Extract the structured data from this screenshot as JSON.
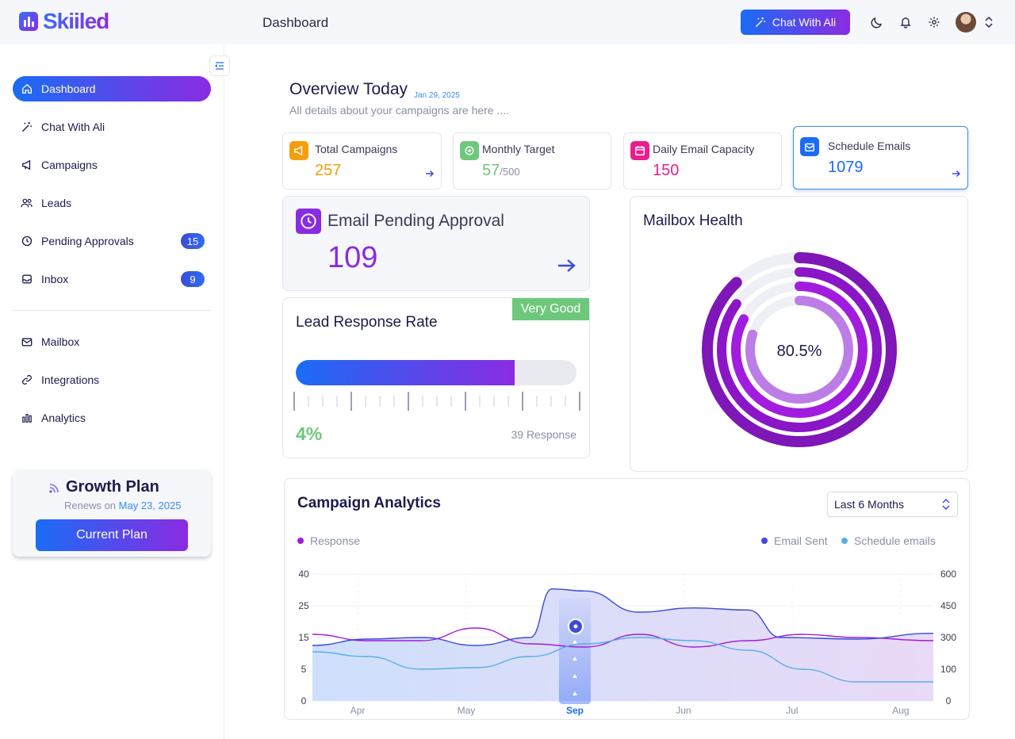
{
  "app": {
    "name": "Skiiled",
    "page_title": "Dashboard",
    "chat_button": "Chat With Ali"
  },
  "sidebar": {
    "items": [
      {
        "label": "Dashboard",
        "icon": "home-icon",
        "active": true
      },
      {
        "label": "Chat With Ali",
        "icon": "magic-wand-icon"
      },
      {
        "label": "Campaigns",
        "icon": "megaphone-icon"
      },
      {
        "label": "Leads",
        "icon": "users-icon"
      },
      {
        "label": "Pending Approvals",
        "icon": "clock-icon",
        "badge": "15"
      },
      {
        "label": "Inbox",
        "icon": "inbox-icon",
        "badge": "9"
      },
      {
        "label": "Mailbox",
        "icon": "mailbox-icon"
      },
      {
        "label": "Integrations",
        "icon": "link-icon"
      },
      {
        "label": "Analytics",
        "icon": "bar-chart-icon"
      }
    ],
    "plan": {
      "title": "Growth Plan",
      "renew_prefix": "Renews on",
      "renew_date": "May 23, 2025",
      "button": "Current Plan"
    }
  },
  "overview": {
    "title": "Overview Today",
    "date": "Jan 29, 2025",
    "subtitle": "All details about your campaigns are here ...."
  },
  "stats": [
    {
      "label": "Total Campaigns",
      "value": "257",
      "color": "#f59e0b",
      "icon": "megaphone-icon"
    },
    {
      "label": "Monthly Target",
      "value": "57",
      "suffix": "/500",
      "color": "#6ec87b",
      "icon": "target-icon"
    },
    {
      "label": "Daily Email Capacity",
      "value": "150",
      "color": "#e91e8c",
      "icon": "calendar-icon"
    },
    {
      "label": "Schedule Emails",
      "value": "1079",
      "color": "#1a6cf5",
      "icon": "mail-open-icon"
    }
  ],
  "approval": {
    "label": "Email Pending Approval",
    "value": "109"
  },
  "lead_response": {
    "title": "Lead Response Rate",
    "tag": "Very Good",
    "percent_text": "4%",
    "fill": 0.78,
    "responses": "39 Response"
  },
  "mailbox_health": {
    "title": "Mailbox Health",
    "value_text": "80.5%",
    "rings": [
      0.88,
      0.85,
      0.83,
      0.8
    ]
  },
  "analytics": {
    "title": "Campaign Analytics",
    "range": "Last 6 Months",
    "legend": {
      "response": "Response",
      "email_sent": "Email Sent",
      "schedule": "Schedule emails"
    },
    "colors": {
      "response": "#a21cdb",
      "email_sent": "#3b4bd8",
      "schedule": "#5aaee8"
    }
  },
  "chart_data": {
    "type": "line",
    "categories": [
      "Apr",
      "May",
      "Sep",
      "Jun",
      "Jul",
      "Aug"
    ],
    "highlight": "Sep",
    "y_left": {
      "ticks": [
        0,
        5,
        15,
        25,
        40
      ]
    },
    "y_right": {
      "ticks": [
        0,
        100,
        300,
        450,
        600
      ]
    },
    "series": [
      {
        "name": "Response",
        "axis": "left",
        "x": [
          0,
          0.5,
          1,
          1.5,
          2,
          2.5,
          3,
          3.5,
          4,
          4.5,
          5,
          5.7
        ],
        "values": [
          16,
          14,
          14,
          18,
          13,
          12,
          16,
          12,
          14,
          16,
          15,
          14
        ]
      },
      {
        "name": "Email Sent",
        "axis": "right",
        "x": [
          0,
          0.5,
          1,
          1.5,
          2,
          2.2,
          2.5,
          3,
          3.5,
          4,
          4.3,
          5,
          5.7
        ],
        "values": [
          250,
          290,
          300,
          250,
          300,
          530,
          520,
          420,
          440,
          430,
          300,
          290,
          320
        ]
      },
      {
        "name": "Schedule emails",
        "axis": "right",
        "x": [
          0,
          0.5,
          1,
          1.5,
          2,
          2.5,
          3,
          3.5,
          4,
          4.5,
          5,
          5.7
        ],
        "values": [
          210,
          180,
          100,
          110,
          180,
          260,
          300,
          280,
          220,
          100,
          60,
          60
        ]
      }
    ]
  }
}
